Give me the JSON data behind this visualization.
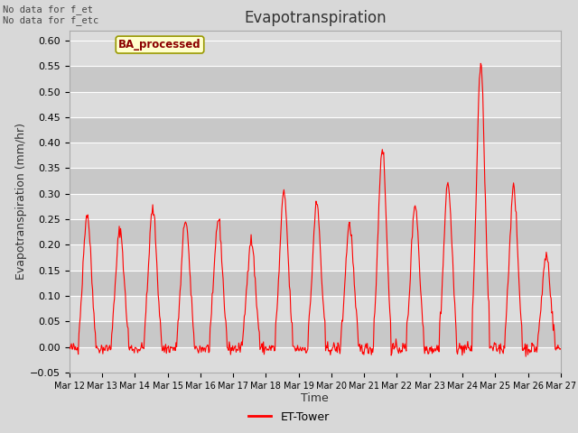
{
  "title": "Evapotranspiration",
  "ylabel": "Evapotranspiration (mm/hr)",
  "xlabel": "Time",
  "ylim": [
    -0.05,
    0.62
  ],
  "yticks": [
    -0.05,
    0.0,
    0.05,
    0.1,
    0.15,
    0.2,
    0.25,
    0.3,
    0.35,
    0.4,
    0.45,
    0.5,
    0.55,
    0.6
  ],
  "line_color": "#FF0000",
  "line_width": 0.8,
  "bg_color": "#D8D8D8",
  "plot_bg_light": "#DCDCDC",
  "plot_bg_dark": "#C8C8C8",
  "grid_color": "#FFFFFF",
  "annotation_text": "No data for f_et\nNo data for f_etc",
  "legend_label": "ET-Tower",
  "box_label": "BA_processed",
  "box_facecolor": "#FFFFCC",
  "box_edgecolor": "#999900",
  "title_fontsize": 12,
  "axis_label_fontsize": 9,
  "tick_fontsize": 8,
  "day_peaks": [
    0.26,
    0.23,
    0.27,
    0.25,
    0.25,
    0.21,
    0.3,
    0.28,
    0.24,
    0.39,
    0.28,
    0.32,
    0.55,
    0.31,
    0.18
  ],
  "n_days": 15,
  "start_day": 12
}
